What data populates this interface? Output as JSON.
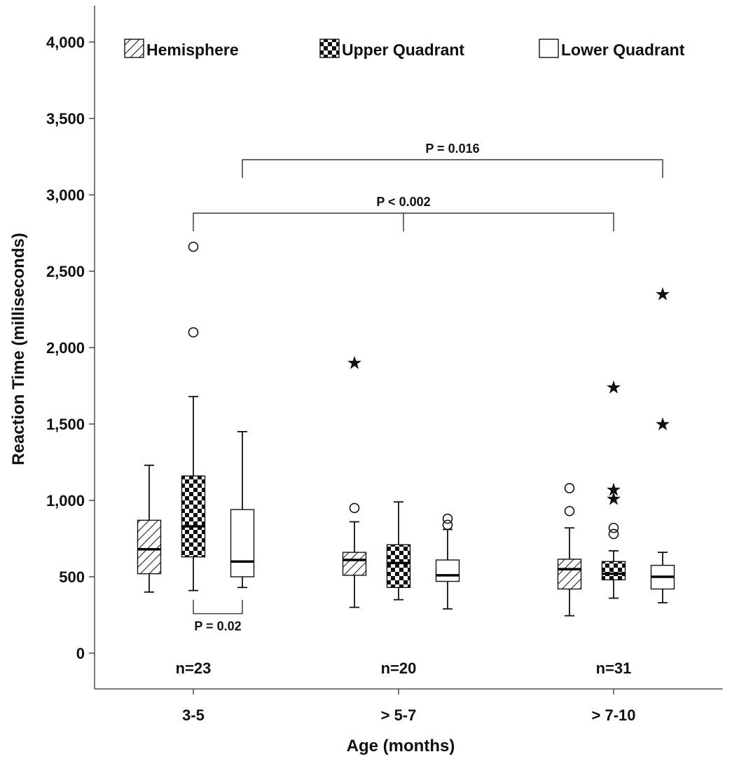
{
  "chart_data": {
    "type": "box",
    "title": "",
    "xlabel": "Age (months)",
    "ylabel": "Reaction Time (milliseconds)",
    "ylim": [
      -150,
      4150
    ],
    "y_ticks": [
      0,
      500,
      1000,
      1500,
      2000,
      2500,
      3000,
      3500,
      4000
    ],
    "y_tick_labels": [
      "0",
      "500",
      "1,000",
      "1,500",
      "2,000",
      "2,500",
      "3,000",
      "3,500",
      "4,000"
    ],
    "categories": [
      "3-5",
      "> 5-7",
      "> 7-10"
    ],
    "sample_sizes": [
      "n=23",
      "n=20",
      "n=31"
    ],
    "legend_position": "top",
    "legend": [
      {
        "label": "Hemisphere",
        "pattern": "hatch"
      },
      {
        "label": "Upper Quadrant",
        "pattern": "checker"
      },
      {
        "label": "Lower Quadrant",
        "pattern": "plain"
      }
    ],
    "series": [
      {
        "name": "Hemisphere",
        "pattern": "hatch",
        "boxes": [
          {
            "whisker_low": 400,
            "q1": 520,
            "median": 680,
            "q3": 870,
            "whisker_high": 1230,
            "outliers": [],
            "extremes": []
          },
          {
            "whisker_low": 300,
            "q1": 510,
            "median": 610,
            "q3": 660,
            "whisker_high": 860,
            "outliers": [
              950
            ],
            "extremes": [
              1910
            ]
          },
          {
            "whisker_low": 245,
            "q1": 420,
            "median": 550,
            "q3": 615,
            "whisker_high": 820,
            "outliers": [
              930,
              1080
            ],
            "extremes": []
          }
        ]
      },
      {
        "name": "Upper Quadrant",
        "pattern": "checker",
        "boxes": [
          {
            "whisker_low": 410,
            "q1": 630,
            "median": 830,
            "q3": 1160,
            "whisker_high": 1680,
            "outliers": [
              2100,
              2660
            ],
            "extremes": []
          },
          {
            "whisker_low": 350,
            "q1": 430,
            "median": 590,
            "q3": 710,
            "whisker_high": 990,
            "outliers": [],
            "extremes": []
          },
          {
            "whisker_low": 360,
            "q1": 480,
            "median": 520,
            "q3": 600,
            "whisker_high": 670,
            "outliers": [
              780,
              820
            ],
            "extremes": [
              1020,
              1080,
              1750
            ]
          }
        ]
      },
      {
        "name": "Lower Quadrant",
        "pattern": "plain",
        "boxes": [
          {
            "whisker_low": 430,
            "q1": 500,
            "median": 600,
            "q3": 940,
            "whisker_high": 1450,
            "outliers": [],
            "extremes": []
          },
          {
            "whisker_low": 290,
            "q1": 470,
            "median": 510,
            "q3": 610,
            "whisker_high": 810,
            "outliers": [
              840,
              880
            ],
            "extremes": []
          },
          {
            "whisker_low": 330,
            "q1": 420,
            "median": 500,
            "q3": 575,
            "whisker_high": 660,
            "outliers": [],
            "extremes": [
              1510,
              2360
            ]
          }
        ]
      }
    ],
    "annotations": [
      {
        "text": "P = 0.016",
        "from_category": 0,
        "from_series": 2,
        "to_category": 2,
        "to_series": 2,
        "y": 3230,
        "orientation": "above"
      },
      {
        "text": "P < 0.002",
        "from_category": 0,
        "from_series": 1,
        "to_category": 2,
        "to_series": 1,
        "y": 2880,
        "orientation": "above",
        "center_tick": true
      },
      {
        "text": "P = 0.02",
        "from_category": 0,
        "from_series": 1,
        "to_category": 0,
        "to_series": 2,
        "y": 350,
        "orientation": "below"
      }
    ]
  }
}
